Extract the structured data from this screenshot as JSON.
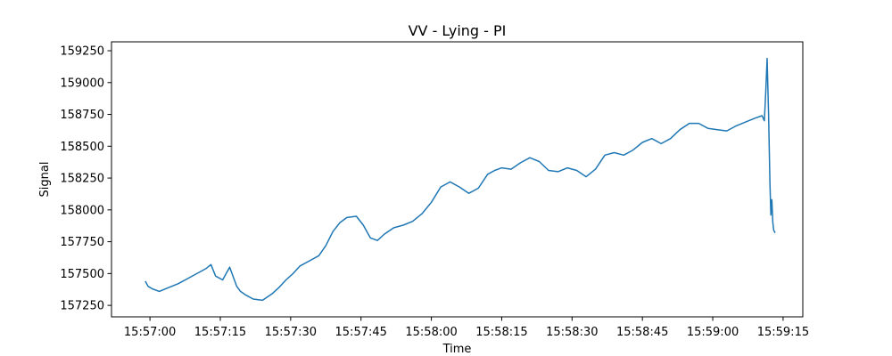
{
  "chart_data": {
    "type": "line",
    "title": "VV - Lying - PI",
    "xlabel": "Time",
    "ylabel": "Signal",
    "xlim": [
      "15:56:51.8",
      "15:59:19.2"
    ],
    "ylim": [
      157160,
      159320
    ],
    "x_ticks": [
      "15:57:00",
      "15:57:15",
      "15:57:30",
      "15:57:45",
      "15:58:00",
      "15:58:15",
      "15:58:30",
      "15:58:45",
      "15:59:00",
      "15:59:15"
    ],
    "y_ticks": [
      157250,
      157500,
      157750,
      158000,
      158250,
      158500,
      158750,
      159000,
      159250
    ],
    "grid": false,
    "line_color": "#1f77b4",
    "series": [
      {
        "x": [
          "15:56:59.0",
          "15:56:59.6",
          "15:57:00.5",
          "15:57:02.0",
          "15:57:04.0",
          "15:57:06.0",
          "15:57:08.0",
          "15:57:10.0",
          "15:57:12.0",
          "15:57:13.0",
          "15:57:14.0",
          "15:57:15.5",
          "15:57:17.0",
          "15:57:18.5",
          "15:57:19.3",
          "15:57:20.5",
          "15:57:22.0",
          "15:57:24.0",
          "15:57:26.0",
          "15:57:27.5",
          "15:57:29.0",
          "15:57:30.5",
          "15:57:32.0",
          "15:57:34.0",
          "15:57:36.0",
          "15:57:37.5",
          "15:57:39.0",
          "15:57:40.5",
          "15:57:42.0",
          "15:57:44.0",
          "15:57:45.5",
          "15:57:47.0",
          "15:57:48.5",
          "15:57:50.0",
          "15:57:52.0",
          "15:57:54.0",
          "15:57:56.0",
          "15:57:58.0",
          "15:58:00.0",
          "15:58:02.0",
          "15:58:04.0",
          "15:58:06.0",
          "15:58:08.0",
          "15:58:10.0",
          "15:58:12.0",
          "15:58:13.5",
          "15:58:15.0",
          "15:58:17.0",
          "15:58:19.0",
          "15:58:21.0",
          "15:58:23.0",
          "15:58:25.0",
          "15:58:27.0",
          "15:58:29.0",
          "15:58:31.0",
          "15:58:33.0",
          "15:58:35.0",
          "15:58:37.0",
          "15:58:39.0",
          "15:58:41.0",
          "15:58:43.0",
          "15:58:45.0",
          "15:58:47.0",
          "15:58:49.0",
          "15:58:51.0",
          "15:58:53.0",
          "15:58:55.0",
          "15:58:57.0",
          "15:58:59.0",
          "15:59:01.0",
          "15:59:03.0",
          "15:59:05.0",
          "15:59:07.0",
          "15:59:09.0",
          "15:59:10.5",
          "15:59:11.0",
          "15:59:11.3",
          "15:59:11.6",
          "15:59:11.9",
          "15:59:12.2",
          "15:59:12.4",
          "15:59:12.6",
          "15:59:12.8",
          "15:59:13.0",
          "15:59:13.3"
        ],
        "values": [
          157440,
          157400,
          157380,
          157360,
          157390,
          157420,
          157460,
          157500,
          157540,
          157570,
          157480,
          157450,
          157550,
          157400,
          157360,
          157330,
          157300,
          157290,
          157340,
          157390,
          157450,
          157500,
          157560,
          157600,
          157640,
          157720,
          157830,
          157900,
          157940,
          157950,
          157880,
          157780,
          157760,
          157810,
          157860,
          157880,
          157910,
          157970,
          158060,
          158180,
          158220,
          158180,
          158130,
          158170,
          158280,
          158310,
          158330,
          158320,
          158370,
          158410,
          158380,
          158310,
          158300,
          158330,
          158310,
          158260,
          158320,
          158430,
          158450,
          158430,
          158470,
          158530,
          158560,
          158520,
          158560,
          158630,
          158680,
          158680,
          158640,
          158630,
          158620,
          158660,
          158690,
          158720,
          158740,
          158700,
          158930,
          159190,
          158760,
          158200,
          157960,
          158080,
          157900,
          157840,
          157820
        ]
      }
    ]
  }
}
